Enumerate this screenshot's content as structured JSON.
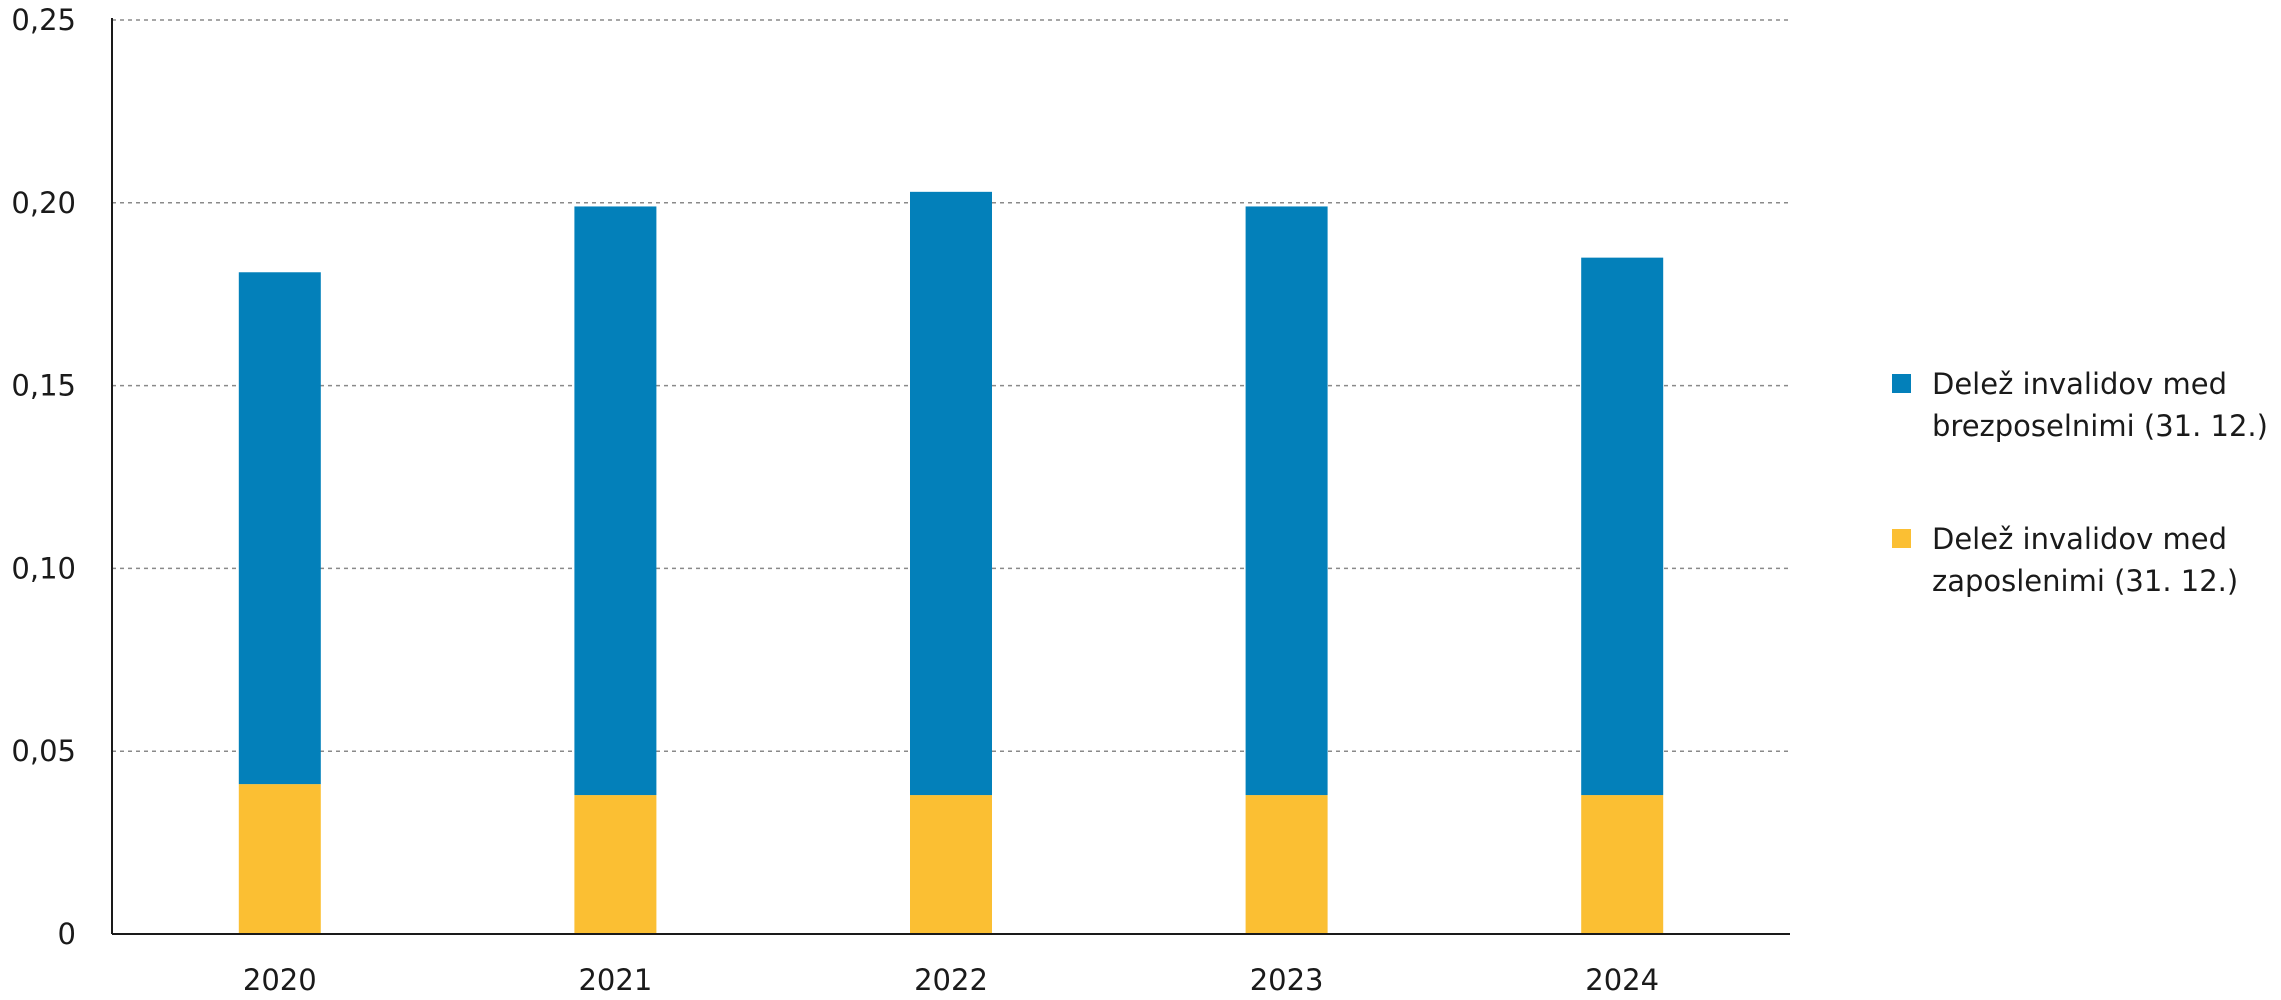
{
  "chart_data": {
    "type": "bar",
    "stacked": true,
    "categories": [
      "2020",
      "2021",
      "2022",
      "2023",
      "2024"
    ],
    "series": [
      {
        "name": "Delež invalidov med zaposlenimi (31. 12.)",
        "legend_lines": [
          "Delež invalidov med",
          "zaposlenimi (31. 12.)"
        ],
        "color": "#FBBF33",
        "values": [
          0.041,
          0.038,
          0.038,
          0.038,
          0.038
        ]
      },
      {
        "name": "Delež invalidov med brezposelnimi (31. 12.)",
        "legend_lines": [
          "Delež invalidov med",
          "brezposelnimi (31. 12.)"
        ],
        "color": "#0380BA",
        "values": [
          0.14,
          0.161,
          0.165,
          0.161,
          0.147
        ]
      }
    ],
    "ylim": [
      0,
      0.25
    ],
    "yticks": [
      0,
      0.05,
      0.1,
      0.15,
      0.2,
      0.25
    ],
    "ytick_labels": [
      "0",
      "0,05",
      "0,10",
      "0,15",
      "0,20",
      "0,25"
    ],
    "grid": true,
    "legend_position": "right",
    "legend_order": [
      1,
      0
    ],
    "title": "",
    "xlabel": "",
    "ylabel": ""
  }
}
